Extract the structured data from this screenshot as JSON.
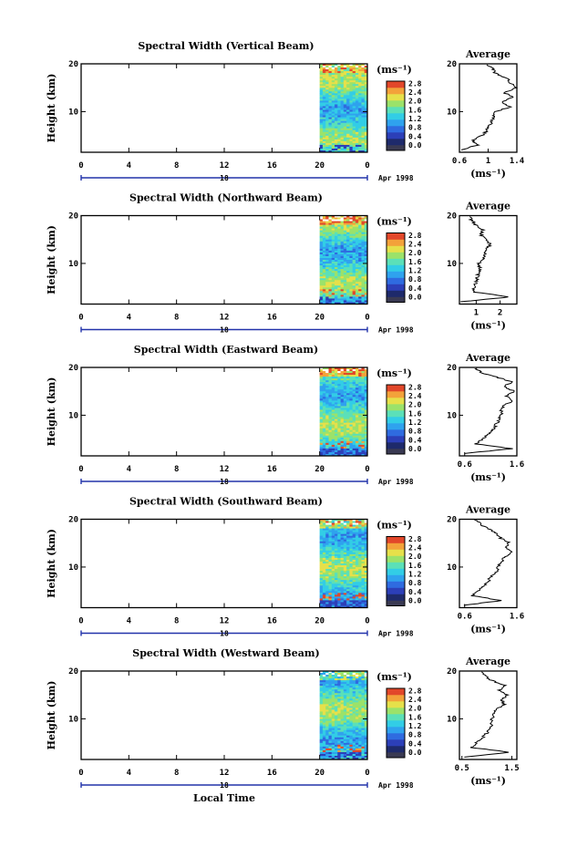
{
  "figure": {
    "xlabel": "Local Time",
    "date_label": "Apr 1998",
    "secondary_tick": "18",
    "colors": {
      "colormap": [
        "#1e2a6b",
        "#2c3fb8",
        "#2f6be0",
        "#2fa2ee",
        "#32cde6",
        "#5be0b8",
        "#9be26a",
        "#e6e04a",
        "#f3a23a",
        "#e2472a"
      ],
      "bottom_color": "#3a3a52"
    }
  },
  "chart_data": [
    {
      "type": "heatmap",
      "title": "Spectral Width (Vertical Beam)",
      "xlabel": "",
      "ylabel": "Height (km)",
      "x_ticks": [
        "0",
        "4",
        "8",
        "12",
        "16",
        "20",
        "0"
      ],
      "y_ticks": [
        "10",
        "20"
      ],
      "xlim": [
        0,
        24
      ],
      "ylim": [
        1.5,
        20
      ],
      "data_x_range": [
        20,
        24
      ],
      "colorbar": {
        "unit_label": "(ms⁻¹)",
        "ticks": [
          "2.8",
          "2.4",
          "2.0",
          "1.6",
          "1.2",
          "0.8",
          "0.4",
          "0.0"
        ],
        "range": [
          0.0,
          2.9
        ]
      },
      "average_profile": {
        "title": "Average",
        "xlabel": "(ms⁻¹)",
        "x_ticks": [
          "0.6",
          "1",
          "1.4"
        ],
        "xlim": [
          0.6,
          1.4
        ],
        "ylim": [
          1.5,
          20
        ],
        "height": [
          2,
          3,
          4,
          5,
          6,
          7,
          8,
          9,
          10,
          11,
          12,
          13,
          14,
          15,
          16,
          17,
          18,
          19,
          20
        ],
        "values": [
          0.62,
          0.85,
          0.78,
          0.92,
          0.98,
          1.02,
          1.05,
          1.08,
          1.1,
          1.3,
          1.18,
          1.35,
          1.22,
          1.4,
          1.3,
          1.26,
          1.1,
          1.06,
          0.98
        ]
      }
    },
    {
      "type": "heatmap",
      "title": "Spectral Width (Northward Beam)",
      "xlabel": "",
      "ylabel": "Height (km)",
      "x_ticks": [
        "0",
        "4",
        "8",
        "12",
        "16",
        "20",
        "0"
      ],
      "y_ticks": [
        "10",
        "20"
      ],
      "xlim": [
        0,
        24
      ],
      "ylim": [
        1.5,
        20
      ],
      "data_x_range": [
        20,
        24
      ],
      "colorbar": {
        "unit_label": "(ms⁻¹)",
        "ticks": [
          "2.8",
          "2.4",
          "2.0",
          "1.6",
          "1.2",
          "0.8",
          "0.4",
          "0.0"
        ],
        "range": [
          0.0,
          2.9
        ]
      },
      "average_profile": {
        "title": "Average",
        "xlabel": "(ms⁻¹)",
        "x_ticks": [
          "1",
          "2"
        ],
        "xlim": [
          0.3,
          2.7
        ],
        "ylim": [
          1.5,
          20
        ],
        "height": [
          2,
          3,
          4,
          5,
          6,
          7,
          8,
          9,
          10,
          11,
          12,
          13,
          14,
          15,
          16,
          17,
          18,
          19,
          20
        ],
        "values": [
          0.4,
          2.4,
          0.9,
          0.9,
          1.0,
          1.05,
          1.1,
          1.15,
          1.1,
          1.3,
          1.35,
          1.45,
          1.6,
          1.4,
          1.2,
          1.3,
          1.0,
          0.8,
          0.7
        ]
      }
    },
    {
      "type": "heatmap",
      "title": "Spectral Width (Eastward Beam)",
      "xlabel": "",
      "ylabel": "Height (km)",
      "x_ticks": [
        "0",
        "4",
        "8",
        "12",
        "16",
        "20",
        "0"
      ],
      "y_ticks": [
        "10",
        "20"
      ],
      "xlim": [
        0,
        24
      ],
      "ylim": [
        1.5,
        20
      ],
      "data_x_range": [
        20,
        24
      ],
      "colorbar": {
        "unit_label": "(ms⁻¹)",
        "ticks": [
          "2.8",
          "2.4",
          "2.0",
          "1.6",
          "1.2",
          "0.8",
          "0.4",
          "0.0"
        ],
        "range": [
          0.0,
          2.9
        ]
      },
      "average_profile": {
        "title": "Average",
        "xlabel": "(ms⁻¹)",
        "x_ticks": [
          "0.6",
          "1.6"
        ],
        "xlim": [
          0.5,
          1.6
        ],
        "ylim": [
          1.5,
          20
        ],
        "height": [
          2,
          3,
          4,
          5,
          6,
          7,
          8,
          9,
          10,
          11,
          12,
          13,
          14,
          15,
          16,
          17,
          18,
          19,
          20
        ],
        "values": [
          0.6,
          1.5,
          0.8,
          0.95,
          1.05,
          1.15,
          1.2,
          1.25,
          1.3,
          1.3,
          1.35,
          1.5,
          1.4,
          1.55,
          1.35,
          1.5,
          1.2,
          0.9,
          0.8
        ]
      }
    },
    {
      "type": "heatmap",
      "title": "Spectral Width (Southward Beam)",
      "xlabel": "",
      "ylabel": "Height (km)",
      "x_ticks": [
        "0",
        "4",
        "8",
        "12",
        "16",
        "20",
        "0"
      ],
      "y_ticks": [
        "10",
        "20"
      ],
      "xlim": [
        0,
        24
      ],
      "ylim": [
        1.5,
        20
      ],
      "data_x_range": [
        20,
        24
      ],
      "colorbar": {
        "unit_label": "(ms⁻¹)",
        "ticks": [
          "2.8",
          "2.4",
          "2.0",
          "1.6",
          "1.2",
          "0.8",
          "0.4",
          "0.0"
        ],
        "range": [
          0.0,
          2.9
        ]
      },
      "average_profile": {
        "title": "Average",
        "xlabel": "(ms⁻¹)",
        "x_ticks": [
          "0.6",
          "1.6"
        ],
        "xlim": [
          0.5,
          1.6
        ],
        "ylim": [
          1.5,
          20
        ],
        "height": [
          2,
          3,
          4,
          5,
          6,
          7,
          8,
          9,
          10,
          11,
          12,
          13,
          14,
          15,
          16,
          17,
          18,
          19,
          20
        ],
        "values": [
          0.6,
          1.3,
          0.75,
          0.85,
          0.95,
          1.05,
          1.1,
          1.2,
          1.25,
          1.3,
          1.35,
          1.5,
          1.4,
          1.45,
          1.3,
          1.2,
          1.05,
          0.9,
          0.8
        ]
      }
    },
    {
      "type": "heatmap",
      "title": "Spectral Width (Westward Beam)",
      "xlabel": "Local Time",
      "ylabel": "Height (km)",
      "x_ticks": [
        "0",
        "4",
        "8",
        "12",
        "16",
        "20",
        "0"
      ],
      "y_ticks": [
        "10",
        "20"
      ],
      "xlim": [
        0,
        24
      ],
      "ylim": [
        1.5,
        20
      ],
      "data_x_range": [
        20,
        24
      ],
      "colorbar": {
        "unit_label": "(ms⁻¹)",
        "ticks": [
          "2.8",
          "2.4",
          "2.0",
          "1.6",
          "1.2",
          "0.8",
          "0.4",
          "0.0"
        ],
        "range": [
          0.0,
          2.9
        ]
      },
      "average_profile": {
        "title": "Average",
        "xlabel": "(ms⁻¹)",
        "x_ticks": [
          "0.5",
          "1.5"
        ],
        "xlim": [
          0.45,
          1.6
        ],
        "ylim": [
          1.5,
          20
        ],
        "height": [
          2,
          3,
          4,
          5,
          6,
          7,
          8,
          9,
          10,
          11,
          12,
          13,
          14,
          15,
          16,
          17,
          18,
          19,
          20
        ],
        "values": [
          0.55,
          1.45,
          0.7,
          0.8,
          0.9,
          1.0,
          1.05,
          1.1,
          1.1,
          1.15,
          1.2,
          1.35,
          1.3,
          1.4,
          1.25,
          1.35,
          1.1,
          0.95,
          0.9
        ]
      }
    }
  ]
}
